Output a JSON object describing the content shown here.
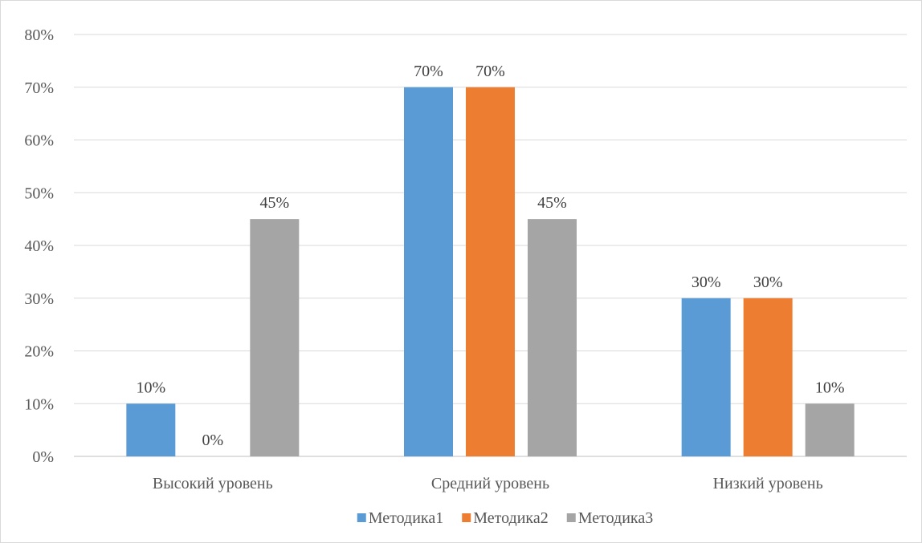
{
  "chart_data": {
    "type": "bar",
    "title": "",
    "xlabel": "",
    "ylabel": "",
    "categories": [
      "Высокий уровень",
      "Средний уровень",
      "Низкий уровень"
    ],
    "series": [
      {
        "name": "Методика1",
        "color": "#5b9bd5",
        "values": [
          10,
          70,
          30
        ]
      },
      {
        "name": "Методика2",
        "color": "#ed7d31",
        "values": [
          0,
          70,
          30
        ]
      },
      {
        "name": "Методика3",
        "color": "#a5a5a5",
        "values": [
          45,
          45,
          10
        ]
      }
    ],
    "ylim": [
      0,
      80
    ],
    "yticks": [
      0,
      10,
      20,
      30,
      40,
      50,
      60,
      70,
      80
    ],
    "tick_suffix": "%",
    "data_labels": true,
    "grid": true,
    "legend": "bottom"
  }
}
